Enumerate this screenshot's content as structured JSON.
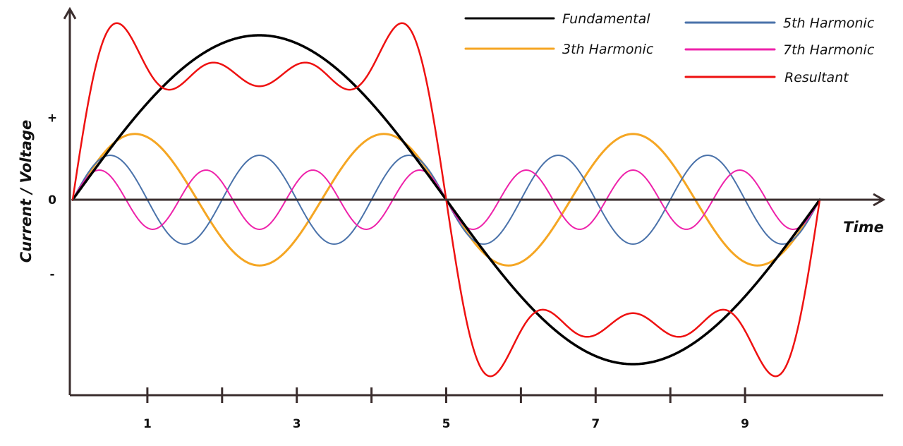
{
  "chart_data": {
    "type": "line",
    "xlabel": "Time",
    "ylabel": "Current / Voltage",
    "x_ticks": [
      {
        "value": 1,
        "label": "1"
      },
      {
        "value": 2,
        "label": ""
      },
      {
        "value": 3,
        "label": "3"
      },
      {
        "value": 4,
        "label": ""
      },
      {
        "value": 5,
        "label": "5"
      },
      {
        "value": 6,
        "label": ""
      },
      {
        "value": 7,
        "label": "7"
      },
      {
        "value": 8,
        "label": ""
      },
      {
        "value": 9,
        "label": "9"
      }
    ],
    "y_marks": [
      {
        "value": 0.5,
        "label": "+"
      },
      {
        "value": 0,
        "label": "0"
      },
      {
        "value": -0.45,
        "label": "-"
      }
    ],
    "xlim": [
      0,
      10
    ],
    "ylim": [
      -1.15,
      1.15
    ],
    "x_arrow_end": 10.85,
    "y_arrow_end": 1.16,
    "legend_placement": "top-right",
    "series": [
      {
        "name": "Fundamental",
        "color": "#000000",
        "harmonic": 1,
        "amplitude": 1.0,
        "line_width": 3.5
      },
      {
        "name": "3th Harmonic",
        "color": "#f5a623",
        "harmonic": 3,
        "amplitude": 0.4,
        "line_width": 3
      },
      {
        "name": "5th Harmonic",
        "color": "#4a72aa",
        "harmonic": 5,
        "amplitude": 0.27,
        "line_width": 2
      },
      {
        "name": "7th Harmonic",
        "color": "#ee22aa",
        "harmonic": 7,
        "amplitude": 0.18,
        "line_width": 2
      },
      {
        "name": "Resultant",
        "color": "#ee1111",
        "harmonic": 0,
        "amplitude": 0,
        "line_width": 2.5
      }
    ]
  }
}
